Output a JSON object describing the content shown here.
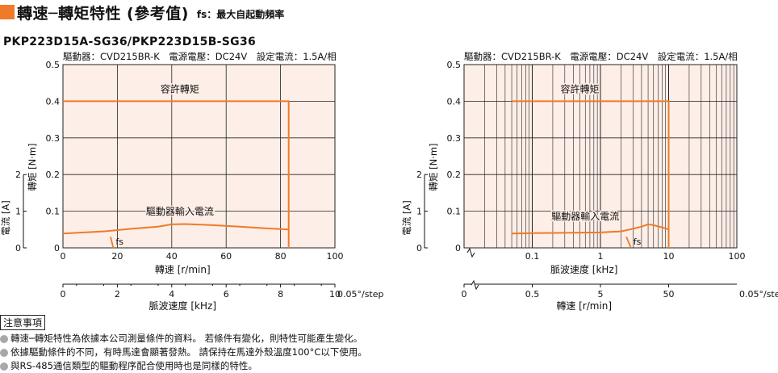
{
  "header": {
    "title": "轉速─轉矩特性 (參考值)",
    "subtitle": "fs：最大自起動頻率",
    "model": "PKP223D15A-SG36/PKP223D15B-SG36"
  },
  "theme": {
    "accent": "#f07a28",
    "plot_bg": "#fdeee7",
    "grid": "#222222"
  },
  "chart_data": [
    {
      "type": "line",
      "driver_info": "驅動器：CVD215BR-K　電源電壓：DC24V　設定電流：1.5A/相",
      "x_scale": "linear",
      "xlabel": "轉速 [r/min]",
      "ylabel": "轉矩 [N·m]",
      "ylabel2": "電流 [A]",
      "xlabel2": "脈波速度 [kHz]",
      "xlim": [
        0,
        100
      ],
      "ylim": [
        0,
        0.5
      ],
      "x_ticks": [
        "0",
        "20",
        "40",
        "60",
        "80",
        "100"
      ],
      "y_ticks": [
        "0",
        "0.1",
        "0.2",
        "0.3",
        "0.4",
        "0.5"
      ],
      "current_ticks": [
        "0",
        "1",
        "2"
      ],
      "current_lim": [
        0,
        2
      ],
      "secondary_ticks": [
        "0",
        "2",
        "4",
        "6",
        "8",
        "10"
      ],
      "secondary_unit": "0.05°/step",
      "series": [
        {
          "name": "容許轉矩",
          "x": [
            0,
            83,
            83,
            83
          ],
          "y": [
            0.4,
            0.4,
            0.4,
            0
          ],
          "label_at": [
            43,
            0.415
          ]
        },
        {
          "name": "驅動器輸入電流",
          "x": [
            0,
            5,
            15,
            25,
            35,
            40,
            45,
            55,
            65,
            75,
            83
          ],
          "y": [
            0.039,
            0.041,
            0.045,
            0.052,
            0.058,
            0.064,
            0.065,
            0.062,
            0.058,
            0.053,
            0.05
          ],
          "label_at": [
            43,
            0.082
          ]
        }
      ],
      "fs_marker": {
        "label": "fs",
        "x": [
          17.5,
          18.5
        ],
        "y": [
          0.03,
          0.0
        ]
      }
    },
    {
      "type": "line",
      "driver_info": "驅動器：CVD215BR-K　電源電壓：DC24V　設定電流：1.5A/相",
      "x_scale": "log",
      "xlabel": "脈波速度 [kHz]",
      "ylabel": "轉矩 [N·m]",
      "ylabel2": "電流 [A]",
      "xlabel2": "轉速 [r/min]",
      "xlim": [
        0.01,
        100
      ],
      "ylim": [
        0,
        0.5
      ],
      "x_ticks": [
        "0.1",
        "1",
        "10",
        "100"
      ],
      "x_tick_values": [
        0.1,
        1,
        10,
        100
      ],
      "y_ticks": [
        "0",
        "0.1",
        "0.2",
        "0.3",
        "0.4",
        "0.5"
      ],
      "current_ticks": [
        "0",
        "1",
        "2"
      ],
      "current_lim": [
        0,
        2
      ],
      "secondary_ticks": [
        "0",
        "0.5",
        "5",
        "50"
      ],
      "secondary_unit": "0.05°/step",
      "series": [
        {
          "name": "容許轉矩",
          "x": [
            0.05,
            10,
            10,
            10
          ],
          "y": [
            0.4,
            0.4,
            0.4,
            0.0
          ],
          "label_at": [
            0.5,
            0.415
          ]
        },
        {
          "name": "驅動器輸入電流",
          "x": [
            0.05,
            0.1,
            0.3,
            1,
            2,
            3,
            4,
            5,
            6,
            8,
            10
          ],
          "y": [
            0.039,
            0.04,
            0.041,
            0.042,
            0.045,
            0.052,
            0.058,
            0.064,
            0.062,
            0.056,
            0.05
          ],
          "label_at": [
            0.6,
            0.068
          ]
        }
      ],
      "fs_marker": {
        "label": "fs",
        "x": [
          2.4,
          2.8
        ],
        "y": [
          0.03,
          0.0
        ]
      }
    }
  ],
  "notes": {
    "title": "注意事項",
    "items": [
      "轉速─轉矩特性為依據本公司測量條件的資料。 若條件有變化，則特性可能產生變化。",
      "依據驅動條件的不同，有時馬達會顯著發熱。 請保持在馬達外殼溫度100°C以下使用。",
      "與RS-485通信類型的驅動程序配合使用時也是同樣的特性。"
    ]
  }
}
